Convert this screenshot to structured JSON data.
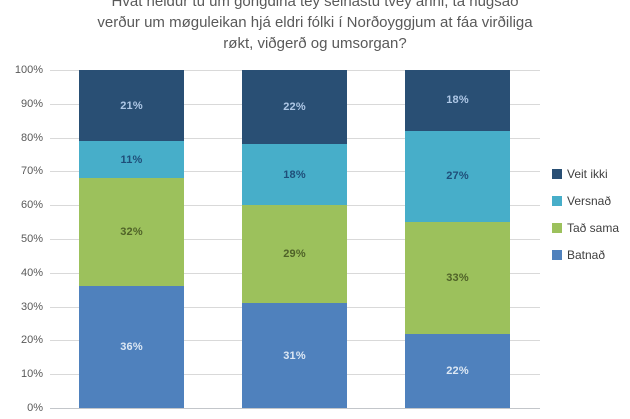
{
  "title": {
    "lines": [
      "Hvat heldur tú um gongdina tey seinastu tvey árini, tá hugsað",
      "verður um møguleikan hjá eldri fólki í Norðoyggjum at fáa virðiliga",
      "røkt, viðgerð og umsorgan?"
    ],
    "color": "#595959"
  },
  "chart_data": {
    "type": "bar",
    "stacked": true,
    "title": "Hvat heldur tú um gongdina tey seinastu tvey árini, tá hugsað verður um møguleikan hjá eldri fólki í Norðoyggjum at fáa virðiliga røkt, viðgerð og umsorgan?",
    "categories": [
      "",
      "",
      ""
    ],
    "series": [
      {
        "name": "Batnað",
        "color": "#4f81bd",
        "label_color": "#dde8f4",
        "values": [
          36,
          31,
          22
        ]
      },
      {
        "name": "Tað sama",
        "color": "#9cc15c",
        "label_color": "#4f6228",
        "values": [
          32,
          29,
          33
        ]
      },
      {
        "name": "Versnað",
        "color": "#47aec9",
        "label_color": "#1f4e79",
        "values": [
          11,
          18,
          27
        ]
      },
      {
        "name": "Veit ikki",
        "color": "#294f74",
        "label_color": "#afc8e6",
        "values": [
          21,
          22,
          18
        ]
      }
    ],
    "data_label_format": "{value}%",
    "y_axis": {
      "min": 0,
      "max": 100,
      "ticks": [
        "100%",
        "90%",
        "80%",
        "70%",
        "60%",
        "50%",
        "40%",
        "30%",
        "20%",
        "10%",
        "0%"
      ],
      "tick_color": "#595959"
    },
    "grid": true,
    "grid_color": "#d9d9d9",
    "legend": {
      "position": "right",
      "entries": [
        "Veit ikki",
        "Versnað",
        "Tað sama",
        "Batnað"
      ],
      "text_color": "#3f3f3f"
    }
  }
}
